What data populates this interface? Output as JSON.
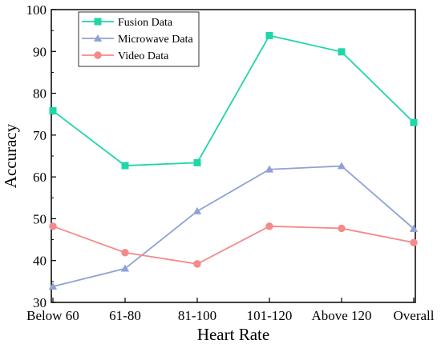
{
  "chart_data": {
    "type": "line",
    "title": "",
    "xlabel": "Heart Rate",
    "ylabel": "Accuracy",
    "categories": [
      "Below 60",
      "61-80",
      "81-100",
      "101-120",
      "Above 120",
      "Overall"
    ],
    "ylim": [
      30,
      100
    ],
    "yticks": [
      30,
      40,
      50,
      60,
      70,
      80,
      90,
      100
    ],
    "grid": false,
    "legend_position": "top-left",
    "series": [
      {
        "name": "Fusion Data",
        "values": [
          75.8,
          62.7,
          63.4,
          93.8,
          89.9,
          73.0
        ],
        "color": "#1fd6a8",
        "marker": "square"
      },
      {
        "name": "Microwave Data",
        "values": [
          33.8,
          38.1,
          51.8,
          61.8,
          62.6,
          47.6
        ],
        "color": "#8fa2d6",
        "marker": "triangle"
      },
      {
        "name": "Video Data",
        "values": [
          48.2,
          41.9,
          39.2,
          48.2,
          47.7,
          44.3
        ],
        "color": "#f48a8a",
        "marker": "circle"
      }
    ]
  }
}
